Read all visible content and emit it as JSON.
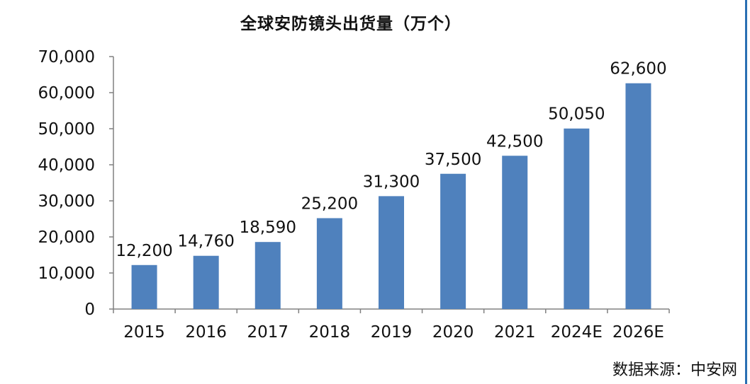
{
  "chart_data": {
    "type": "bar",
    "title": "全球安防镜头出货量（万个）",
    "categories": [
      "2015",
      "2016",
      "2017",
      "2018",
      "2019",
      "2020",
      "2021",
      "2024E",
      "2026E"
    ],
    "values": [
      12200,
      14760,
      18590,
      25200,
      31300,
      37500,
      42500,
      50050,
      62600
    ],
    "data_labels": [
      "12,200",
      "14,760",
      "18,590",
      "25,200",
      "31,300",
      "37,500",
      "42,500",
      "50,050",
      "62,600"
    ],
    "ylim": [
      0,
      70000
    ],
    "yticks": [
      0,
      10000,
      20000,
      30000,
      40000,
      50000,
      60000,
      70000
    ],
    "ytick_labels": [
      "0",
      "10,000",
      "20,000",
      "30,000",
      "40,000",
      "50,000",
      "60,000",
      "70,000"
    ],
    "xlabel": "",
    "ylabel": "",
    "grid": false,
    "legend": "none",
    "bar_color": "#4f81bd",
    "axis_color": "#808080"
  },
  "source": "数据来源：中安网"
}
